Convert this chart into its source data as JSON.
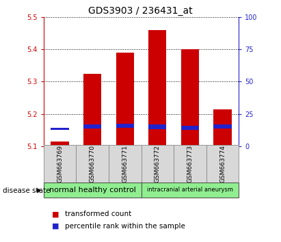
{
  "title": "GDS3903 / 236431_at",
  "samples": [
    "GSM663769",
    "GSM663770",
    "GSM663771",
    "GSM663772",
    "GSM663773",
    "GSM663774"
  ],
  "red_tops": [
    5.115,
    5.325,
    5.39,
    5.46,
    5.4,
    5.215
  ],
  "blue_tops": [
    5.158,
    5.168,
    5.17,
    5.167,
    5.163,
    5.168
  ],
  "blue_bottoms": [
    5.15,
    5.155,
    5.157,
    5.153,
    5.15,
    5.155
  ],
  "bar_base": 5.1,
  "ylim_left": [
    5.1,
    5.5
  ],
  "ylim_right": [
    0,
    100
  ],
  "yticks_left": [
    5.1,
    5.2,
    5.3,
    5.4,
    5.5
  ],
  "yticks_right": [
    0,
    25,
    50,
    75,
    100
  ],
  "bar_width": 0.55,
  "red_color": "#cc0000",
  "blue_color": "#2222cc",
  "bg_color": "#d8d8d8",
  "group1_color": "#90ee90",
  "group2_color": "#90ee90",
  "group1_label": "normal healthy control",
  "group2_label": "intracranial arterial aneurysm",
  "disease_state_label": "disease state",
  "legend_red": "transformed count",
  "legend_blue": "percentile rank within the sample",
  "tick_color_left": "#cc0000",
  "tick_color_right": "#2222cc",
  "tick_fontsize": 7,
  "title_fontsize": 10,
  "sample_fontsize": 6.5,
  "group_fontsize1": 8,
  "group_fontsize2": 6,
  "legend_fontsize": 7.5
}
